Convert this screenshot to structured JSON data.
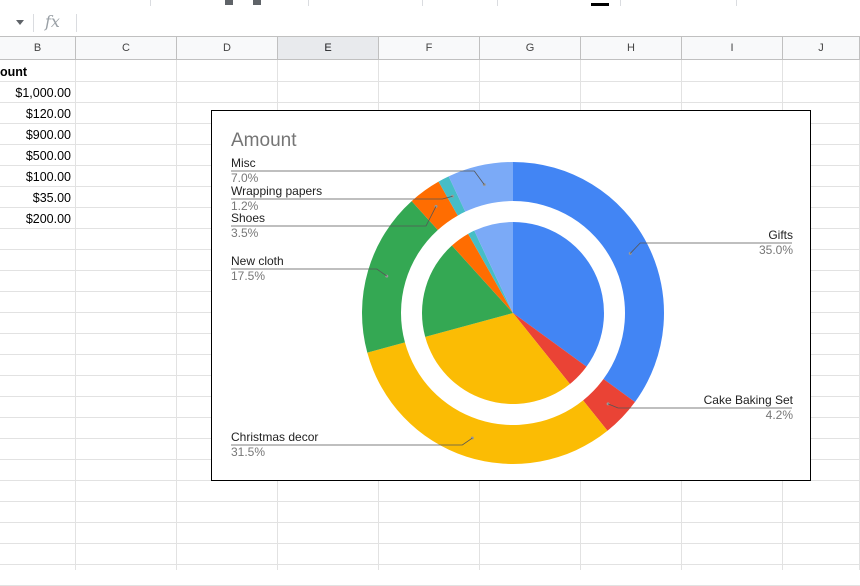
{
  "formula_bar": {
    "fx_label": "fx",
    "content": ""
  },
  "columns": [
    {
      "label": "B",
      "selected": false
    },
    {
      "label": "C",
      "selected": false
    },
    {
      "label": "D",
      "selected": false
    },
    {
      "label": "E",
      "selected": true
    },
    {
      "label": "F",
      "selected": false
    },
    {
      "label": "G",
      "selected": false
    },
    {
      "label": "H",
      "selected": false
    },
    {
      "label": "I",
      "selected": false
    },
    {
      "label": "J",
      "selected": false
    }
  ],
  "sheet": {
    "header_partial": "ount",
    "values": [
      "$1,000.00",
      "$120.00",
      "$900.00",
      "$500.00",
      "$100.00",
      "$35.00",
      "$200.00"
    ]
  },
  "colors": {
    "blue": "#4285f4",
    "red": "#ea4335",
    "yellow": "#fbbc04",
    "green": "#34a853",
    "orange": "#ff6d01",
    "teal": "#46bdc6",
    "light_blue": "#7baaf7"
  },
  "chart_data": {
    "type": "pie",
    "title": "Amount",
    "style": "donut",
    "rings": [
      {
        "name": "outer",
        "slices": [
          {
            "label": "Gifts",
            "percent": "35.0%",
            "value": 35.0,
            "color": "#4285f4"
          },
          {
            "label": "Cake Baking Set",
            "percent": "4.2%",
            "value": 4.2,
            "color": "#ea4335"
          },
          {
            "label": "Christmas decor",
            "percent": "31.5%",
            "value": 31.5,
            "color": "#fbbc04"
          },
          {
            "label": "New cloth",
            "percent": "17.5%",
            "value": 17.5,
            "color": "#34a853"
          },
          {
            "label": "Shoes",
            "percent": "3.5%",
            "value": 3.5,
            "color": "#ff6d01"
          },
          {
            "label": "Wrapping papers",
            "percent": "1.2%",
            "value": 1.2,
            "color": "#46bdc6"
          },
          {
            "label": "Misc",
            "percent": "7.0%",
            "value": 7.0,
            "color": "#7baaf7"
          }
        ]
      },
      {
        "name": "inner",
        "slices": [
          {
            "value": 35.0,
            "color": "#4285f4"
          },
          {
            "value": 4.2,
            "color": "#ea4335"
          },
          {
            "value": 31.5,
            "color": "#fbbc04"
          },
          {
            "value": 17.5,
            "color": "#34a853"
          },
          {
            "value": 3.5,
            "color": "#ff6d01"
          },
          {
            "value": 1.2,
            "color": "#46bdc6"
          },
          {
            "value": 7.0,
            "color": "#7baaf7"
          }
        ]
      }
    ],
    "legend": "labels-with-leader-lines"
  }
}
